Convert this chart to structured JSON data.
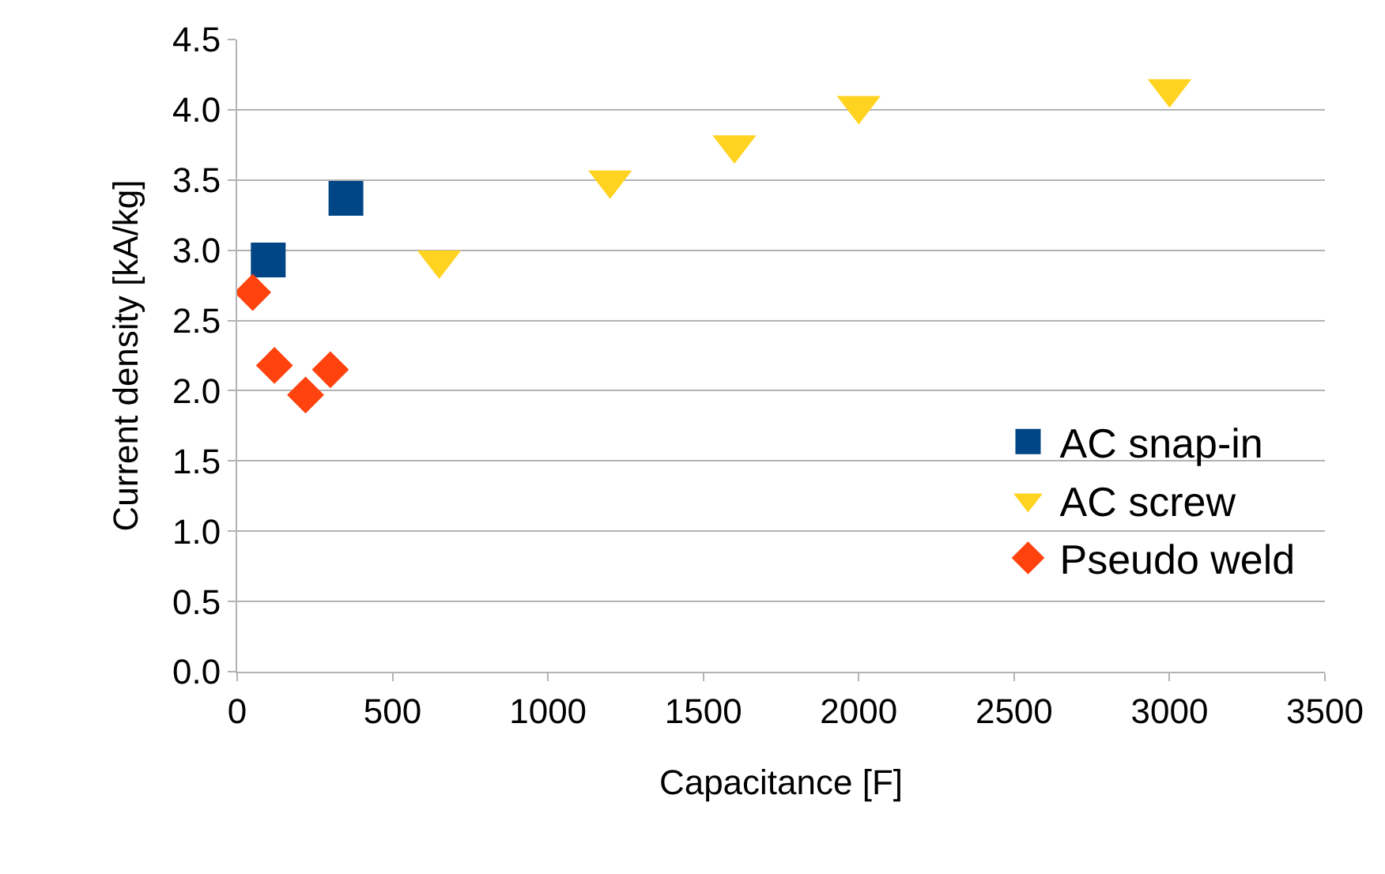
{
  "chart_data": {
    "type": "scatter",
    "xlabel": "Capacitance [F]",
    "ylabel": "Current density [kA/kg]",
    "xlim": [
      0,
      3500
    ],
    "xticks": [
      0,
      500,
      1000,
      1500,
      2000,
      2500,
      3000,
      3500
    ],
    "ylim": [
      0,
      4.5
    ],
    "yticks": [
      {
        "value": 0,
        "label": "0.0"
      },
      {
        "value": 0.5,
        "label": "0.5"
      },
      {
        "value": 1,
        "label": "1.0"
      },
      {
        "value": 1.5,
        "label": "1.5"
      },
      {
        "value": 2,
        "label": "2.0"
      },
      {
        "value": 2.5,
        "label": "2.5"
      },
      {
        "value": 3,
        "label": "3.0"
      },
      {
        "value": 3.5,
        "label": "3.5"
      },
      {
        "value": 4,
        "label": "4.0"
      },
      {
        "value": 4.5,
        "label": "4.5"
      }
    ],
    "grid": "y",
    "legend": "bottom right",
    "series": [
      {
        "name": "AC snap-in",
        "color": "#004586",
        "marker": "square",
        "x": [
          100,
          350
        ],
        "values": [
          2.93,
          3.37
        ]
      },
      {
        "name": "AC screw",
        "color": "#ffd320",
        "marker": "triangle",
        "x": [
          650,
          1200,
          1600,
          2000,
          3000
        ],
        "values": [
          2.93,
          3.5,
          3.75,
          4.03,
          4.15
        ]
      },
      {
        "name": "Pseudo weld",
        "color": "#ff420e",
        "marker": "diamond",
        "x": [
          50,
          120,
          220,
          300
        ],
        "values": [
          2.7,
          2.18,
          1.97,
          2.15
        ]
      }
    ]
  }
}
